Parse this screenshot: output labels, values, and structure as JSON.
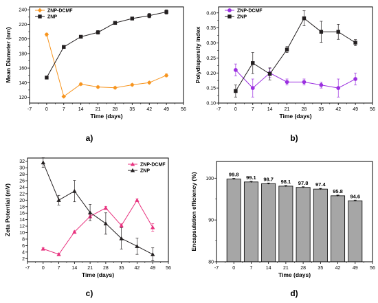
{
  "chart_data": [
    {
      "panel": "a)",
      "type": "line",
      "xlabel": "Time (days)",
      "ylabel": "Mean Diameter (nm)",
      "x": [
        0,
        7,
        14,
        21,
        28,
        35,
        42,
        49
      ],
      "xticks": [
        -7,
        0,
        7,
        14,
        21,
        28,
        35,
        42,
        49,
        56
      ],
      "xlim": [
        -7,
        56
      ],
      "ylim": [
        112,
        244
      ],
      "yticks": [
        120,
        140,
        160,
        180,
        200,
        220,
        240
      ],
      "legend_position": "top-left",
      "series": [
        {
          "name": "ZNP-DCMF",
          "color": "#f7941d",
          "marker": "diamond",
          "values": [
            206,
            121,
            138,
            134,
            133,
            137,
            140,
            150
          ],
          "errors": [
            2,
            1.5,
            1.5,
            1.5,
            1.5,
            1.5,
            1.5,
            2
          ]
        },
        {
          "name": "ZNP",
          "color": "#231f20",
          "marker": "square",
          "values": [
            147,
            189,
            203,
            209,
            222,
            228,
            232,
            237
          ],
          "errors": [
            1,
            1.5,
            2,
            2.5,
            2,
            2,
            3,
            3
          ]
        }
      ]
    },
    {
      "panel": "b)",
      "type": "line",
      "xlabel": "Time (days)",
      "ylabel": "Polydispersity index",
      "x": [
        0,
        7,
        14,
        21,
        28,
        35,
        42,
        49
      ],
      "xticks": [
        -7,
        0,
        7,
        14,
        21,
        28,
        35,
        42,
        49,
        56
      ],
      "xlim": [
        -7,
        56
      ],
      "ylim": [
        0.1,
        0.42
      ],
      "yticks": [
        0.1,
        0.15,
        0.2,
        0.25,
        0.3,
        0.35,
        0.4
      ],
      "ytick_labels": [
        "0.10",
        "0.15",
        "0.20",
        "0.25",
        "0.30",
        "0.35",
        "0.40"
      ],
      "legend_position": "top-left",
      "series": [
        {
          "name": "ZNP-DCMF",
          "color": "#9b30e0",
          "marker": "circle",
          "values": [
            0.21,
            0.15,
            0.2,
            0.17,
            0.17,
            0.16,
            0.15,
            0.18
          ],
          "errors": [
            0.02,
            0.03,
            0.015,
            0.01,
            0.01,
            0.01,
            0.03,
            0.02
          ]
        },
        {
          "name": "ZNP",
          "color": "#231f20",
          "marker": "square",
          "values": [
            0.14,
            0.233,
            0.197,
            0.278,
            0.382,
            0.337,
            0.337,
            0.301
          ],
          "errors": [
            0.02,
            0.035,
            0.02,
            0.01,
            0.025,
            0.035,
            0.025,
            0.01
          ]
        }
      ]
    },
    {
      "panel": "c)",
      "type": "line",
      "xlabel": "Time (days)",
      "ylabel": "Zeta Potential (mV)",
      "x": [
        0,
        7,
        14,
        21,
        28,
        35,
        42,
        49
      ],
      "xticks": [
        -7,
        0,
        7,
        14,
        21,
        28,
        35,
        42,
        49,
        56
      ],
      "xlim": [
        -7,
        56
      ],
      "ylim": [
        1,
        33
      ],
      "yticks": [
        2,
        4,
        6,
        8,
        10,
        12,
        14,
        16,
        18,
        20,
        22,
        24,
        26,
        28,
        30,
        32
      ],
      "legend_position": "top-right",
      "series": [
        {
          "name": "ZNP-DCMF",
          "color": "#e8337f",
          "marker": "triangle",
          "values": [
            5,
            3.3,
            10.2,
            15,
            17.6,
            12.2,
            20,
            11.6
          ],
          "errors": [
            0.3,
            0.3,
            0.3,
            0.5,
            0.5,
            0.5,
            0.4,
            1.2
          ]
        },
        {
          "name": "ZNP",
          "color": "#231f20",
          "marker": "triangle",
          "values": [
            31.6,
            20,
            22.8,
            16.2,
            12.8,
            8.2,
            5.8,
            3.3
          ],
          "errors": [
            1.5,
            1.5,
            3.3,
            2.5,
            3.3,
            3.3,
            2.5,
            2
          ]
        }
      ]
    },
    {
      "panel": "d)",
      "type": "bar",
      "xlabel": "Time (days)",
      "ylabel": "Encapsulation efficiency (%)",
      "x": [
        0,
        7,
        14,
        21,
        28,
        35,
        42,
        49
      ],
      "xticks": [
        -7,
        0,
        7,
        14,
        21,
        28,
        35,
        42,
        49,
        56
      ],
      "xlim": [
        -7,
        56
      ],
      "ylim": [
        80,
        104
      ],
      "yticks": [
        80,
        90,
        100
      ],
      "bar_color": "#a6a6a6",
      "values": [
        99.8,
        99.1,
        98.7,
        98.1,
        97.8,
        97.4,
        95.8,
        94.6
      ],
      "labels": [
        "99.8",
        "99.1",
        "98.7",
        "98.1",
        "97.8",
        "97.4",
        "95.8",
        "94.6"
      ],
      "errors": [
        0.15,
        0.15,
        0.15,
        0.15,
        0.15,
        0.15,
        0.15,
        0.15
      ]
    }
  ]
}
